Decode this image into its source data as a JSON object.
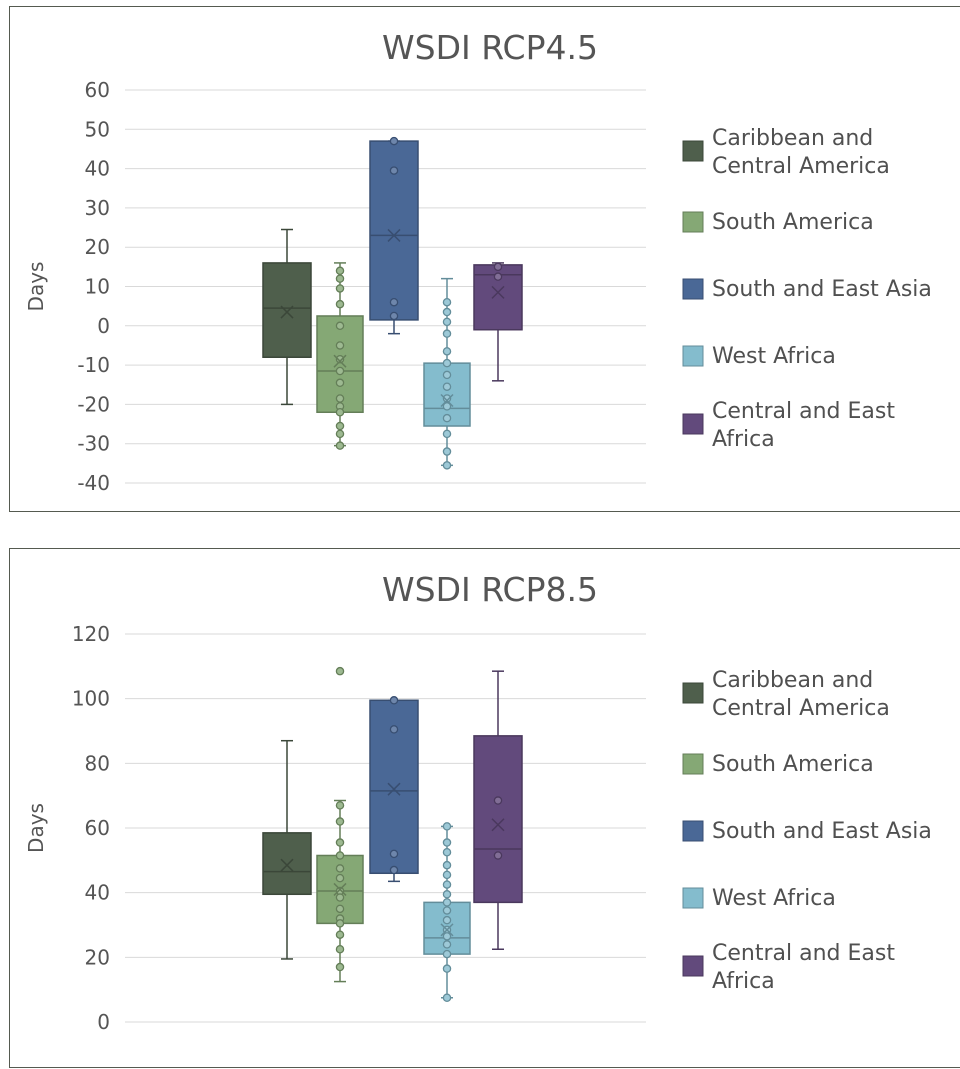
{
  "chart_data": [
    {
      "type": "box",
      "title": "WSDI RCP4.5",
      "ylabel": "Days",
      "ylim": [
        -40,
        60
      ],
      "yticks": [
        "60",
        "50",
        "40",
        "30",
        "20",
        "10",
        "0",
        "-10",
        "-20",
        "-30",
        "-40"
      ],
      "series": [
        {
          "name": "Caribbean and Central America",
          "legend_lines": [
            "Caribbean and",
            "Central America"
          ],
          "color": "#4f5f4c",
          "whisker_low": -20,
          "q1": -8,
          "median": 4.5,
          "q3": 16,
          "whisker_high": 24.5,
          "mean": 3.5,
          "points": []
        },
        {
          "name": "South America",
          "legend_lines": [
            "South America"
          ],
          "color": "#85a875",
          "whisker_low": -30.5,
          "q1": -22,
          "median": -11.5,
          "q3": 2.5,
          "whisker_high": 16,
          "mean": -9,
          "points": [
            14,
            12,
            9.5,
            5.5,
            0,
            -5,
            -8.5,
            -11.5,
            -14.5,
            -18.5,
            -20.5,
            -22,
            -25.5,
            -27.5,
            -30.5
          ]
        },
        {
          "name": "South and East Asia",
          "legend_lines": [
            "South and East Asia"
          ],
          "color": "#4a6896",
          "whisker_low": -2,
          "q1": 1.5,
          "median": 23,
          "q3": 47,
          "whisker_high": 47,
          "mean": 23,
          "points": [
            47,
            39.5,
            6,
            2.5
          ]
        },
        {
          "name": "West Africa",
          "legend_lines": [
            "West Africa"
          ],
          "color": "#84bccd",
          "whisker_low": -35.5,
          "q1": -25.5,
          "median": -21,
          "q3": -9.5,
          "whisker_high": 12,
          "mean": -19,
          "points": [
            6,
            3.5,
            1,
            -2,
            -6.5,
            -9.5,
            -12.5,
            -15.5,
            -18.5,
            -20.5,
            -23.5,
            -27.5,
            -32,
            -35.5
          ]
        },
        {
          "name": "Central and East Africa",
          "legend_lines": [
            "Central and East",
            "Africa"
          ],
          "color": "#624a7c",
          "whisker_low": -14,
          "q1": -1,
          "median": 13,
          "q3": 15.5,
          "whisker_high": 16,
          "mean": 8.5,
          "points": [
            15,
            12.5
          ]
        }
      ]
    },
    {
      "type": "box",
      "title": "WSDI RCP8.5",
      "ylabel": "Days",
      "ylim": [
        0,
        120
      ],
      "yticks": [
        "120",
        "100",
        "80",
        "60",
        "40",
        "20",
        "0"
      ],
      "series": [
        {
          "name": "Caribbean and Central America",
          "legend_lines": [
            "Caribbean and",
            "Central America"
          ],
          "color": "#4f5f4c",
          "whisker_low": 19.5,
          "q1": 39.5,
          "median": 46.5,
          "q3": 58.5,
          "whisker_high": 87,
          "mean": 48.5,
          "points": []
        },
        {
          "name": "South America",
          "legend_lines": [
            "South America"
          ],
          "color": "#85a875",
          "whisker_low": 12.5,
          "q1": 30.5,
          "median": 40.5,
          "q3": 51.5,
          "whisker_high": 68.5,
          "mean": 41,
          "points": [
            108.5,
            67,
            62,
            55.5,
            51.5,
            47.5,
            44.5,
            40.5,
            38.5,
            35,
            32,
            30.5,
            27,
            22.5,
            17
          ]
        },
        {
          "name": "South and East Asia",
          "legend_lines": [
            "South and East Asia"
          ],
          "color": "#4a6896",
          "whisker_low": 43.5,
          "q1": 46,
          "median": 71.5,
          "q3": 99.5,
          "whisker_high": 99.5,
          "mean": 72,
          "points": [
            99.5,
            90.5,
            52,
            47
          ]
        },
        {
          "name": "West Africa",
          "legend_lines": [
            "West Africa"
          ],
          "color": "#84bccd",
          "whisker_low": 7.5,
          "q1": 21,
          "median": 26,
          "q3": 37,
          "whisker_high": 60.5,
          "mean": 28.5,
          "points": [
            60.5,
            55.5,
            52.5,
            48.5,
            45.5,
            42.5,
            39.5,
            37,
            34.5,
            31.5,
            28.5,
            26.5,
            24,
            21,
            16.5,
            7.5
          ]
        },
        {
          "name": "Central and East Africa",
          "legend_lines": [
            "Central and East",
            "Africa"
          ],
          "color": "#624a7c",
          "whisker_low": 22.5,
          "q1": 37,
          "median": 53.5,
          "q3": 88.5,
          "whisker_high": 108.5,
          "mean": 61,
          "points": [
            68.5,
            51.5
          ]
        }
      ]
    }
  ]
}
